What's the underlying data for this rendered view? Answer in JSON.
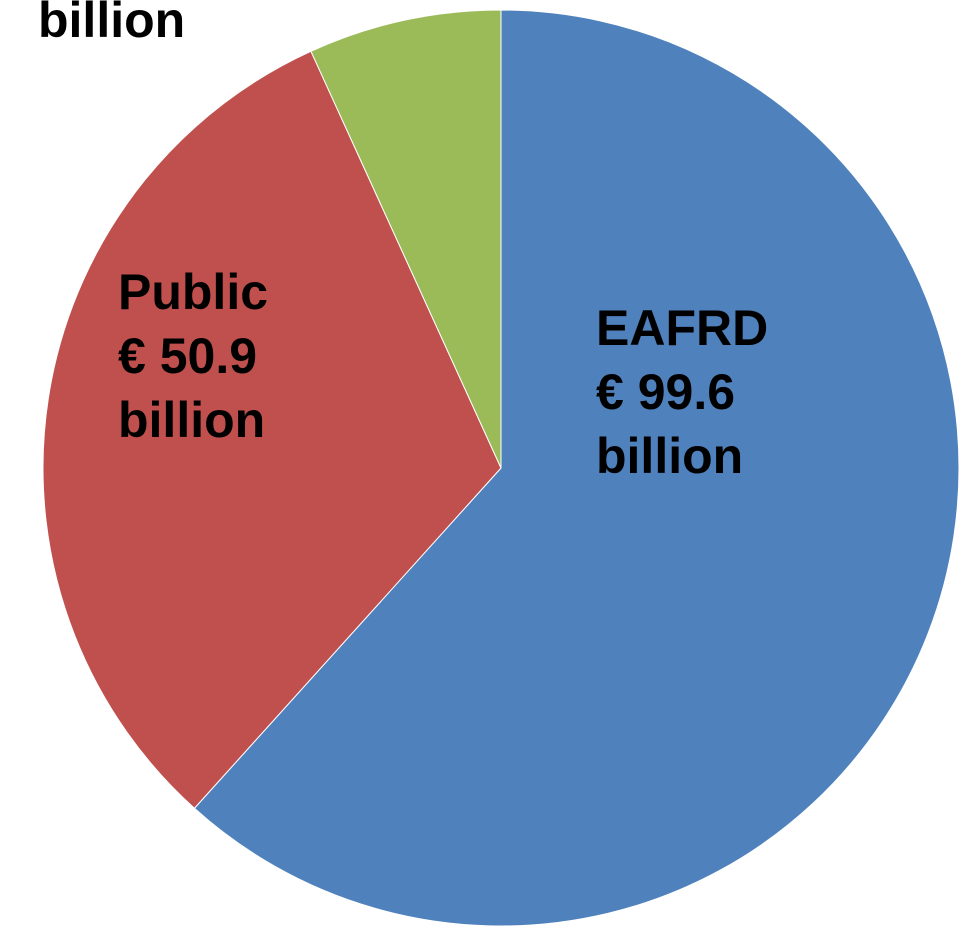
{
  "chart_data": {
    "type": "pie",
    "title": "",
    "start_angle_deg": 0,
    "direction": "clockwise",
    "slices": [
      {
        "label": "EAFRD",
        "value": 99.6,
        "unit_text": "€ 99.6",
        "suffix": "billion",
        "color": "#4F81BD"
      },
      {
        "label": "Public",
        "value": 50.9,
        "unit_text": "€ 50.9",
        "suffix": "billion",
        "color": "#C0504D"
      },
      {
        "label": "",
        "value": 11,
        "unit_text": "",
        "suffix": "billion",
        "color": "#9BBB59"
      }
    ]
  }
}
